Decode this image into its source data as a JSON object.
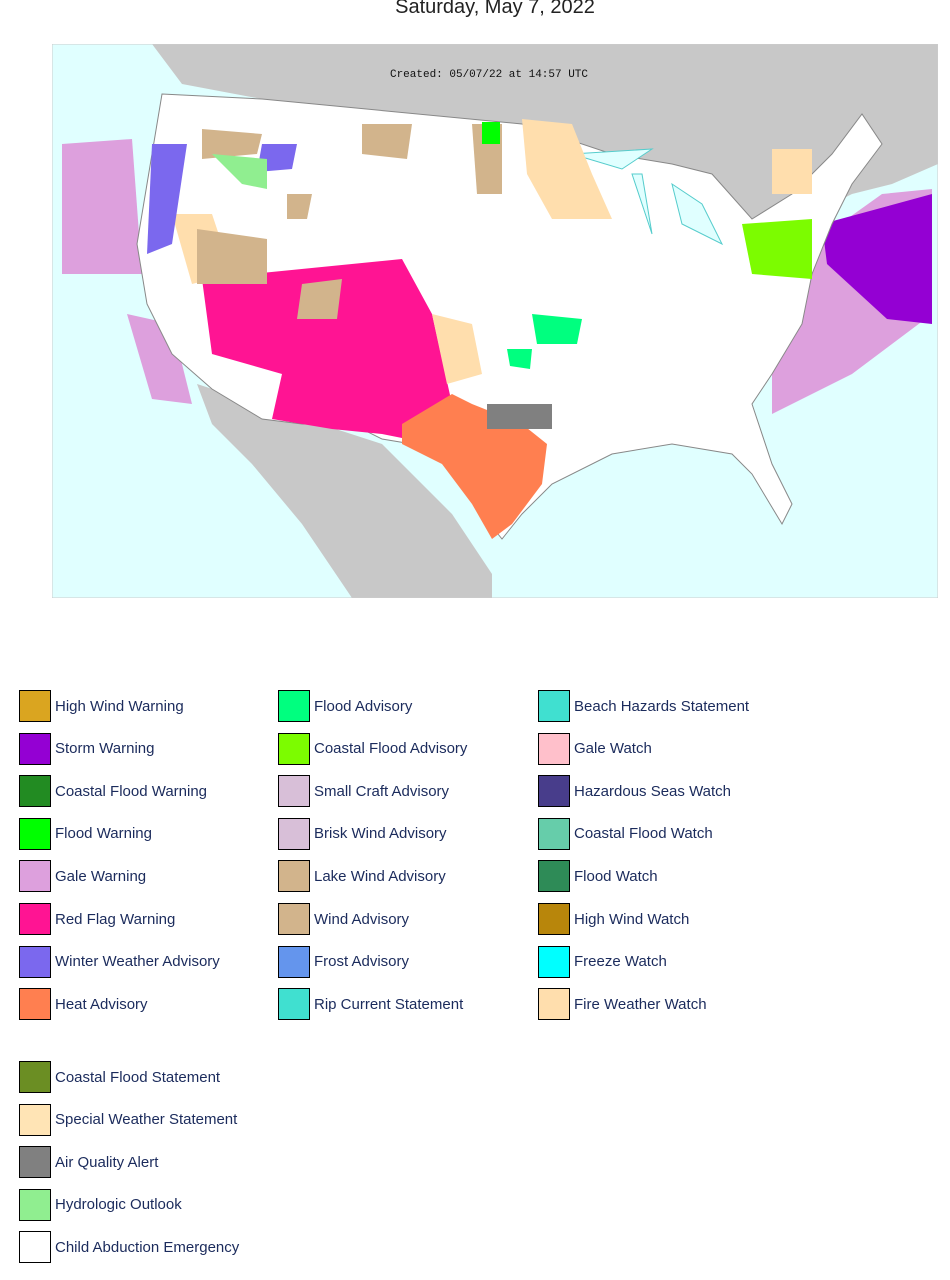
{
  "header": {
    "title": "Saturday, May 7, 2022"
  },
  "map": {
    "created": "Created: 05/07/22 at 14:57 UTC"
  },
  "legend": {
    "columns": [
      [
        {
          "name": "High Wind Warning",
          "color": "#DAA520"
        },
        {
          "name": "Storm Warning",
          "color": "#9400D3"
        },
        {
          "name": "Coastal Flood Warning",
          "color": "#228B22"
        },
        {
          "name": "Flood Warning",
          "color": "#00FF00"
        },
        {
          "name": "Gale Warning",
          "color": "#DDA0DD"
        },
        {
          "name": "Red Flag Warning",
          "color": "#FF1493"
        },
        {
          "name": "Winter Weather Advisory",
          "color": "#7B68EE"
        },
        {
          "name": "Heat Advisory",
          "color": "#FF7F50"
        }
      ],
      [
        {
          "name": "Flood Advisory",
          "color": "#00FF7F"
        },
        {
          "name": "Coastal Flood Advisory",
          "color": "#7CFC00"
        },
        {
          "name": "Small Craft Advisory",
          "color": "#D8BFD8"
        },
        {
          "name": "Brisk Wind Advisory",
          "color": "#D8BFD8"
        },
        {
          "name": "Lake Wind Advisory",
          "color": "#D2B48C"
        },
        {
          "name": "Wind Advisory",
          "color": "#D2B48C"
        },
        {
          "name": "Frost Advisory",
          "color": "#6495ED"
        },
        {
          "name": "Rip Current Statement",
          "color": "#40E0D0"
        }
      ],
      [
        {
          "name": "Beach Hazards Statement",
          "color": "#40E0D0"
        },
        {
          "name": "Gale Watch",
          "color": "#FFC0CB"
        },
        {
          "name": "Hazardous Seas Watch",
          "color": "#483D8B"
        },
        {
          "name": "Coastal Flood Watch",
          "color": "#66CDAA"
        },
        {
          "name": "Flood Watch",
          "color": "#2E8B57"
        },
        {
          "name": "High Wind Watch",
          "color": "#B8860B"
        },
        {
          "name": "Freeze Watch",
          "color": "#00FFFF"
        },
        {
          "name": "Fire Weather Watch",
          "color": "#FFDEAD"
        }
      ]
    ],
    "extra": [
      {
        "name": "Coastal Flood Statement",
        "color": "#6B8E23"
      },
      {
        "name": "Special Weather Statement",
        "color": "#FFE4B5"
      },
      {
        "name": "Air Quality Alert",
        "color": "#808080"
      },
      {
        "name": "Hydrologic Outlook",
        "color": "#90EE90"
      },
      {
        "name": "Child Abduction Emergency",
        "color": "#FFFFFF"
      }
    ]
  }
}
